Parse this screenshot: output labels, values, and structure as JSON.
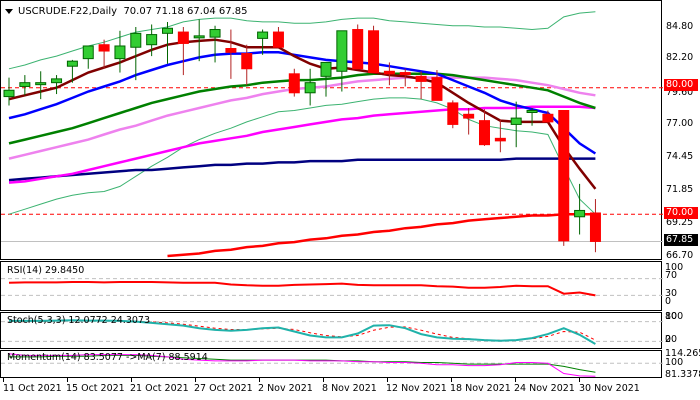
{
  "header": {
    "symbol": "USCRUDE.F22,Daily",
    "ohlc": "70.07 71.18 67.04 67.85"
  },
  "price_axis": {
    "ticks": [
      "84.80",
      "82.20",
      "79.60",
      "77.00",
      "74.45",
      "71.85",
      "69.25",
      "66.70"
    ],
    "tag_resistance": "80.00",
    "tag_support": "70.00",
    "tag_current": "67.85",
    "colors": {
      "resistance": "#ff0000",
      "current": "#000000"
    }
  },
  "indicators": {
    "rsi": {
      "label": "RSI(14) 29.8450",
      "levels": [
        "100",
        "70",
        "30",
        "0"
      ]
    },
    "stoch": {
      "label": "Stoch(5,3,3) 12.0772 24.3073",
      "levels": [
        "100",
        "80",
        "20",
        "0"
      ]
    },
    "momentum": {
      "label": "Momentum(14) 83.5077  ->MA(7) 88.5914",
      "levels": [
        "114.2651",
        "100",
        "81.3378"
      ]
    }
  },
  "x_axis": {
    "labels": [
      "11 Oct 2021",
      "15 Oct 2021",
      "21 Oct 2021",
      "27 Oct 2021",
      "2 Nov 2021",
      "8 Nov 2021",
      "12 Nov 2021",
      "18 Nov 2021",
      "24 Nov 2021",
      "30 Nov 2021"
    ]
  },
  "chart_data": {
    "type": "candlestick",
    "title": "USCRUDE.F22, Daily",
    "xlabel": "",
    "ylabel": "",
    "ylim": [
      66.0,
      86.0
    ],
    "categories": [
      "8 Oct",
      "11 Oct",
      "12 Oct",
      "13 Oct",
      "14 Oct",
      "15 Oct",
      "18 Oct",
      "19 Oct",
      "20 Oct",
      "21 Oct",
      "22 Oct",
      "25 Oct",
      "26 Oct",
      "27 Oct",
      "28 Oct",
      "29 Oct",
      "1 Nov",
      "2 Nov",
      "3 Nov",
      "4 Nov",
      "5 Nov",
      "8 Nov",
      "9 Nov",
      "10 Nov",
      "11 Nov",
      "12 Nov",
      "15 Nov",
      "16 Nov",
      "17 Nov",
      "18 Nov",
      "19 Nov",
      "22 Nov",
      "23 Nov",
      "24 Nov",
      "25 Nov",
      "26 Nov",
      "29 Nov",
      "30 Nov"
    ],
    "series": [
      {
        "name": "open",
        "values": [
          79.3,
          80.1,
          80.4,
          80.4,
          81.7,
          82.3,
          83.4,
          82.3,
          83.2,
          83.4,
          84.3,
          84.4,
          84.0,
          84.0,
          83.1,
          82.7,
          83.9,
          84.4,
          81.1,
          79.6,
          80.9,
          81.3,
          84.6,
          84.5,
          81.3,
          81.2,
          80.9,
          80.8,
          78.8,
          77.9,
          77.4,
          76.0,
          77.1,
          78.2,
          77.9,
          78.2,
          69.8,
          70.1
        ]
      },
      {
        "name": "high",
        "values": [
          80.8,
          81.0,
          81.3,
          81.0,
          82.2,
          83.0,
          83.8,
          84.5,
          84.8,
          85.0,
          85.2,
          84.8,
          85.4,
          84.9,
          84.6,
          83.4,
          84.6,
          84.8,
          81.5,
          81.5,
          82.0,
          82.1,
          85.0,
          84.9,
          82.0,
          81.5,
          81.3,
          81.4,
          79.0,
          78.4,
          78.3,
          77.5,
          78.9,
          78.4,
          78.2,
          77.9,
          72.4,
          71.2
        ]
      },
      {
        "name": "low",
        "values": [
          78.6,
          79.4,
          79.1,
          79.5,
          80.4,
          81.5,
          81.5,
          81.2,
          80.6,
          82.5,
          81.9,
          81.0,
          82.1,
          82.0,
          80.7,
          80.2,
          82.6,
          83.6,
          79.3,
          78.6,
          79.3,
          79.7,
          82.5,
          81.2,
          80.2,
          80.1,
          79.1,
          79.7,
          76.8,
          76.3,
          75.4,
          74.9,
          75.3,
          77.0,
          77.3,
          67.5,
          68.4,
          67.0
        ]
      },
      {
        "name": "close",
        "values": [
          79.8,
          80.4,
          80.4,
          80.7,
          82.1,
          83.3,
          82.9,
          83.3,
          84.3,
          84.2,
          84.7,
          83.5,
          84.1,
          84.6,
          82.8,
          81.5,
          84.4,
          83.2,
          79.6,
          80.4,
          82.0,
          84.5,
          81.5,
          81.2,
          81.1,
          81.1,
          80.5,
          79.0,
          77.1,
          77.6,
          75.5,
          75.8,
          77.6,
          78.2,
          77.3,
          67.9,
          70.3,
          67.85
        ]
      },
      {
        "name": "Bollinger Upper",
        "values": [
          81.5,
          81.8,
          82.2,
          82.5,
          82.9,
          83.3,
          83.6,
          84.0,
          84.4,
          84.6,
          84.8,
          85.2,
          85.4,
          85.5,
          85.5,
          85.3,
          85.2,
          85.2,
          85.1,
          85.1,
          85.2,
          85.4,
          85.5,
          85.5,
          85.3,
          85.2,
          85.1,
          85.0,
          84.9,
          84.9,
          84.8,
          84.8,
          84.7,
          84.6,
          84.7,
          85.6,
          85.9,
          86.0
        ]
      },
      {
        "name": "EMA short (maroon)",
        "values": [
          79.1,
          79.4,
          79.7,
          80.0,
          80.6,
          81.2,
          81.6,
          82.0,
          82.5,
          83.0,
          83.4,
          83.6,
          83.7,
          83.8,
          83.6,
          83.2,
          83.2,
          83.2,
          82.5,
          81.9,
          81.5,
          81.6,
          81.4,
          81.2,
          81.0,
          80.9,
          80.7,
          80.4,
          79.6,
          78.8,
          78.1,
          77.4,
          77.3,
          77.3,
          77.3,
          75.3,
          73.6,
          72.0
        ]
      },
      {
        "name": "EMA medium (blue)",
        "values": [
          77.6,
          77.9,
          78.3,
          78.7,
          79.2,
          79.7,
          80.1,
          80.5,
          81.0,
          81.4,
          81.8,
          82.1,
          82.4,
          82.6,
          82.7,
          82.7,
          82.8,
          82.8,
          82.6,
          82.4,
          82.2,
          82.1,
          82.0,
          81.9,
          81.7,
          81.5,
          81.3,
          81.1,
          80.6,
          80.1,
          79.6,
          79.0,
          78.6,
          78.3,
          78.0,
          76.8,
          75.6,
          74.8
        ]
      },
      {
        "name": "EMA long (green)",
        "values": [
          75.6,
          75.9,
          76.2,
          76.5,
          76.8,
          77.2,
          77.6,
          78.0,
          78.4,
          78.8,
          79.1,
          79.4,
          79.7,
          79.9,
          80.1,
          80.2,
          80.4,
          80.5,
          80.6,
          80.6,
          80.7,
          80.8,
          81.0,
          81.1,
          81.1,
          81.1,
          81.1,
          81.1,
          81.0,
          80.8,
          80.6,
          80.4,
          80.2,
          80.0,
          79.8,
          79.3,
          78.8,
          78.4
        ]
      },
      {
        "name": "SMA (violet)",
        "values": [
          74.4,
          74.7,
          75.0,
          75.3,
          75.6,
          75.9,
          76.3,
          76.7,
          77.0,
          77.4,
          77.8,
          78.1,
          78.4,
          78.7,
          79.0,
          79.2,
          79.5,
          79.7,
          79.9,
          80.0,
          80.1,
          80.3,
          80.5,
          80.6,
          80.7,
          80.8,
          80.8,
          80.8,
          80.8,
          80.8,
          80.8,
          80.7,
          80.6,
          80.4,
          80.2,
          79.9,
          79.6,
          79.4
        ]
      },
      {
        "name": "SMA (magenta)",
        "values": [
          72.5,
          72.6,
          72.8,
          73.0,
          73.2,
          73.5,
          73.8,
          74.1,
          74.4,
          74.7,
          75.0,
          75.3,
          75.6,
          75.8,
          76.0,
          76.2,
          76.5,
          76.7,
          76.9,
          77.1,
          77.3,
          77.5,
          77.6,
          77.8,
          77.9,
          78.0,
          78.1,
          78.2,
          78.3,
          78.3,
          78.4,
          78.4,
          78.4,
          78.5,
          78.5,
          78.5,
          78.5,
          78.4
        ]
      },
      {
        "name": "Bollinger Lower",
        "values": [
          70.0,
          70.4,
          70.8,
          71.2,
          71.5,
          71.7,
          71.8,
          72.2,
          73.0,
          73.8,
          74.5,
          75.3,
          75.9,
          76.4,
          76.8,
          77.3,
          77.7,
          78.1,
          78.2,
          78.4,
          78.6,
          78.7,
          78.9,
          79.1,
          79.2,
          79.2,
          79.1,
          78.8,
          78.3,
          77.5,
          77.0,
          76.8,
          76.6,
          76.5,
          76.3,
          73.7,
          71.2,
          70.0
        ]
      },
      {
        "name": "SMA 100 (navy)",
        "values": [
          72.7,
          72.8,
          72.9,
          73.0,
          73.1,
          73.2,
          73.3,
          73.4,
          73.5,
          73.5,
          73.6,
          73.7,
          73.8,
          73.9,
          73.9,
          74.0,
          74.0,
          74.1,
          74.1,
          74.2,
          74.2,
          74.2,
          74.3,
          74.3,
          74.3,
          74.3,
          74.3,
          74.3,
          74.3,
          74.3,
          74.3,
          74.3,
          74.4,
          74.4,
          74.4,
          74.4,
          74.4,
          74.4
        ]
      },
      {
        "name": "SMA 200 (red)",
        "values": [
          null,
          null,
          null,
          null,
          null,
          null,
          null,
          null,
          null,
          null,
          66.7,
          66.8,
          66.9,
          67.1,
          67.2,
          67.4,
          67.5,
          67.7,
          67.8,
          68.0,
          68.1,
          68.3,
          68.4,
          68.6,
          68.7,
          68.9,
          69.0,
          69.2,
          69.3,
          69.5,
          69.6,
          69.7,
          69.8,
          69.9,
          69.9,
          70.0,
          70.0,
          70.0
        ]
      }
    ],
    "horizontal_lines": [
      {
        "value": 80.0,
        "style": "dashed",
        "color": "#ff0000"
      },
      {
        "value": 70.0,
        "style": "dashed",
        "color": "#ff0000"
      },
      {
        "value": 67.85,
        "style": "solid",
        "color": "#c0c0c0"
      }
    ],
    "subcharts": [
      {
        "name": "RSI(14)",
        "last": 29.845,
        "ylim": [
          0,
          100
        ],
        "levels": [
          70,
          30
        ],
        "values": [
          60,
          61,
          61,
          61,
          62,
          62,
          61,
          62,
          62,
          62,
          61,
          60,
          60,
          60,
          56,
          54,
          53,
          53,
          55,
          56,
          57,
          58,
          55,
          54,
          54,
          54,
          54,
          52,
          51,
          48,
          48,
          50,
          53,
          52,
          52,
          34,
          37,
          30
        ]
      },
      {
        "name": "Stoch(5,3,3)",
        "main": 12.0772,
        "signal": 24.3073,
        "ylim": [
          0,
          100
        ],
        "levels": [
          80,
          20
        ],
        "main_values": [
          82,
          82,
          82,
          83,
          84,
          83,
          83,
          82,
          80,
          76,
          72,
          68,
          60,
          55,
          52,
          55,
          60,
          62,
          50,
          38,
          32,
          32,
          44,
          68,
          69,
          60,
          42,
          32,
          28,
          27,
          24,
          22,
          24,
          30,
          42,
          60,
          40,
          12
        ],
        "signal_values": [
          80,
          80,
          81,
          82,
          83,
          83,
          83,
          82,
          81,
          79,
          76,
          72,
          66,
          60,
          56,
          56,
          58,
          60,
          56,
          46,
          38,
          34,
          38,
          54,
          63,
          64,
          54,
          42,
          32,
          28,
          25,
          23,
          24,
          28,
          35,
          50,
          48,
          24
        ]
      },
      {
        "name": "Momentum(14)",
        "last": 83.5077,
        "ma7": 88.5914,
        "ylim": [
          81.3378,
          114.2651
        ],
        "levels": [
          100
        ],
        "values": [
          112,
          110,
          110,
          110,
          110,
          111,
          111,
          111,
          111,
          110,
          108,
          105,
          104,
          103,
          103,
          103,
          104,
          104,
          104,
          103,
          103,
          103,
          102,
          102,
          101,
          101,
          100,
          98,
          98,
          97,
          97,
          98,
          101,
          101,
          100,
          87,
          84,
          83.5
        ],
        "ma_values": [
          108,
          108,
          108,
          109,
          109,
          109,
          110,
          110,
          110,
          109,
          108,
          107,
          106,
          105,
          104,
          104,
          104,
          104,
          104,
          104,
          104,
          103,
          103,
          102,
          102,
          102,
          101,
          101,
          100,
          99,
          99,
          99,
          99,
          99,
          99,
          96,
          92,
          88.6
        ]
      }
    ]
  }
}
